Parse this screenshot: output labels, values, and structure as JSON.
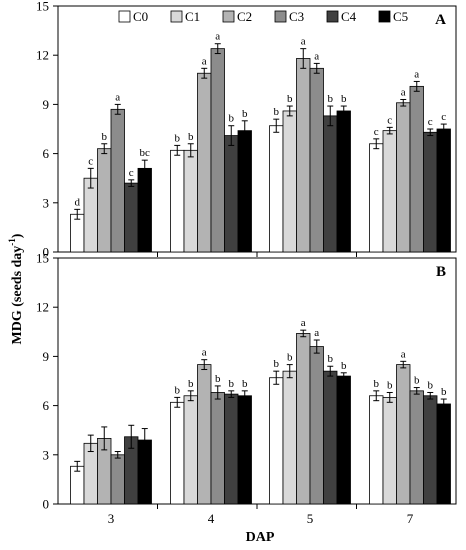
{
  "figure": {
    "ylabel": "MDG (seeds day",
    "ylabel_sup": "-1",
    "ylabel_close": ")",
    "xlabel": "DAP"
  },
  "legend": {
    "items": [
      {
        "name": "C0",
        "color": "#ffffff"
      },
      {
        "name": "C1",
        "color": "#d9d9d9"
      },
      {
        "name": "C2",
        "color": "#b3b3b3"
      },
      {
        "name": "C3",
        "color": "#8c8c8c"
      },
      {
        "name": "C4",
        "color": "#404040"
      },
      {
        "name": "C5",
        "color": "#000000"
      }
    ]
  },
  "chart_data": [
    {
      "type": "bar",
      "panel": "A",
      "categories": [
        "3",
        "4",
        "5",
        "7"
      ],
      "ylim": [
        0,
        15
      ],
      "yticks": [
        "0",
        "3",
        "6",
        "9",
        "12",
        "15"
      ],
      "series": [
        {
          "name": "C0",
          "values": [
            2.3,
            6.2,
            7.7,
            6.6
          ],
          "errors": [
            0.3,
            0.3,
            0.4,
            0.3
          ],
          "letters": [
            "d",
            "b",
            "b",
            "c"
          ]
        },
        {
          "name": "C1",
          "values": [
            4.5,
            6.2,
            8.6,
            7.4
          ],
          "errors": [
            0.6,
            0.4,
            0.3,
            0.2
          ],
          "letters": [
            "c",
            "b",
            "b",
            "c"
          ]
        },
        {
          "name": "C2",
          "values": [
            6.3,
            10.9,
            11.8,
            9.1
          ],
          "errors": [
            0.3,
            0.3,
            0.6,
            0.2
          ],
          "letters": [
            "b",
            "a",
            "a",
            "a"
          ]
        },
        {
          "name": "C3",
          "values": [
            8.7,
            12.4,
            11.2,
            10.1
          ],
          "errors": [
            0.3,
            0.3,
            0.3,
            0.3
          ],
          "letters": [
            "a",
            "a",
            "a",
            "a"
          ]
        },
        {
          "name": "C4",
          "values": [
            4.2,
            7.1,
            8.3,
            7.3
          ],
          "errors": [
            0.2,
            0.6,
            0.6,
            0.2
          ],
          "letters": [
            "c",
            "b",
            "b",
            "c"
          ]
        },
        {
          "name": "C5",
          "values": [
            5.1,
            7.4,
            8.6,
            7.5
          ],
          "errors": [
            0.5,
            0.6,
            0.3,
            0.3
          ],
          "letters": [
            "bc",
            "b",
            "b",
            "c"
          ]
        }
      ]
    },
    {
      "type": "bar",
      "panel": "B",
      "categories": [
        "3",
        "4",
        "5",
        "7"
      ],
      "ylim": [
        0,
        15
      ],
      "yticks": [
        "0",
        "3",
        "6",
        "9",
        "12",
        "15"
      ],
      "series": [
        {
          "name": "C0",
          "values": [
            2.3,
            6.2,
            7.7,
            6.6
          ],
          "errors": [
            0.3,
            0.3,
            0.4,
            0.3
          ],
          "letters": [
            "",
            "b",
            "b",
            "b"
          ]
        },
        {
          "name": "C1",
          "values": [
            3.7,
            6.6,
            8.1,
            6.5
          ],
          "errors": [
            0.5,
            0.3,
            0.4,
            0.3
          ],
          "letters": [
            "",
            "b",
            "b",
            "b"
          ]
        },
        {
          "name": "C2",
          "values": [
            4.0,
            8.5,
            10.4,
            8.5
          ],
          "errors": [
            0.7,
            0.3,
            0.2,
            0.2
          ],
          "letters": [
            "",
            "a",
            "a",
            "a"
          ]
        },
        {
          "name": "C3",
          "values": [
            3.0,
            6.8,
            9.6,
            6.9
          ],
          "errors": [
            0.2,
            0.4,
            0.4,
            0.2
          ],
          "letters": [
            "",
            "b",
            "a",
            "b"
          ]
        },
        {
          "name": "C4",
          "values": [
            4.1,
            6.7,
            8.1,
            6.6
          ],
          "errors": [
            0.7,
            0.2,
            0.3,
            0.2
          ],
          "letters": [
            "",
            "b",
            "b",
            "b"
          ]
        },
        {
          "name": "C5",
          "values": [
            3.9,
            6.6,
            7.8,
            6.1
          ],
          "errors": [
            0.7,
            0.3,
            0.2,
            0.3
          ],
          "letters": [
            "",
            "b",
            "b",
            "b"
          ]
        }
      ]
    }
  ]
}
